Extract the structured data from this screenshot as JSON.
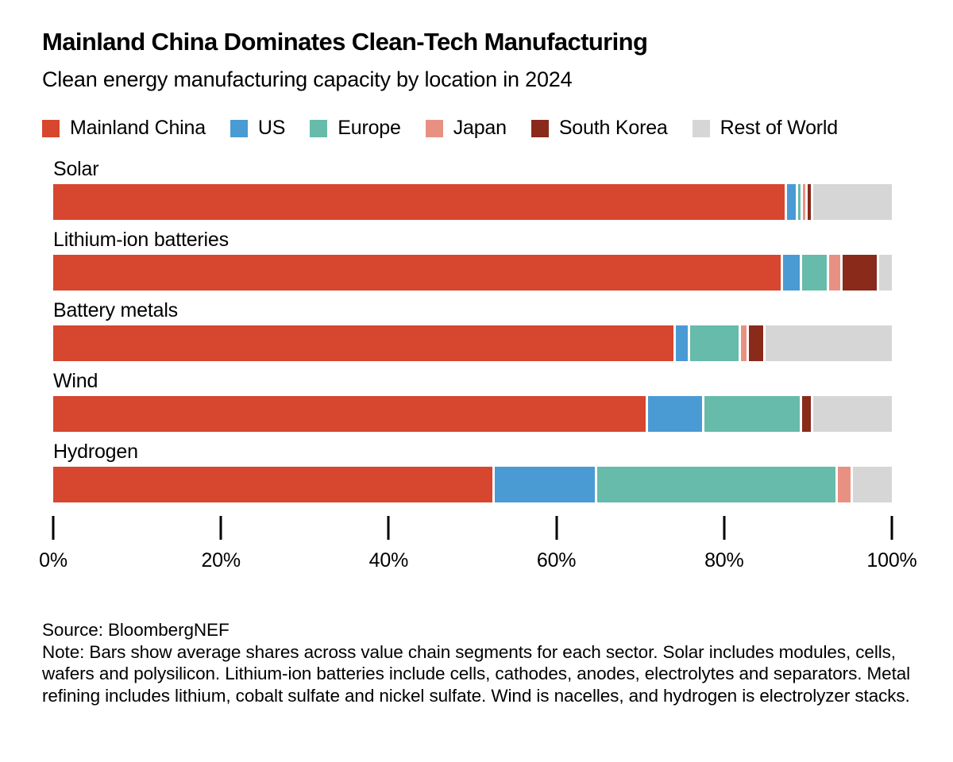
{
  "header": {
    "title": "Mainland China Dominates Clean-Tech Manufacturing",
    "subtitle": "Clean energy manufacturing capacity by location in 2024"
  },
  "chart_data": {
    "type": "bar",
    "orientation": "horizontal-stacked",
    "unit": "percent",
    "title": "Mainland China Dominates Clean-Tech Manufacturing",
    "subtitle": "Clean energy manufacturing capacity by location in 2024",
    "legend_position": "top",
    "grid": false,
    "legend": [
      {
        "name": "Mainland China",
        "color": "#d7462f"
      },
      {
        "name": "US",
        "color": "#4a9ad4"
      },
      {
        "name": "Europe",
        "color": "#66bbaa"
      },
      {
        "name": "Japan",
        "color": "#e89183"
      },
      {
        "name": "South Korea",
        "color": "#8a2a1b"
      },
      {
        "name": "Rest of World",
        "color": "#d6d6d6"
      }
    ],
    "categories": [
      "Solar",
      "Lithium-ion batteries",
      "Battery metals",
      "Wind",
      "Hydrogen"
    ],
    "rows": [
      {
        "category": "Solar",
        "values": [
          88.5,
          1.0,
          0.3,
          0.3,
          0.4,
          9.5
        ]
      },
      {
        "category": "Lithium-ion batteries",
        "values": [
          88.0,
          2.0,
          3.0,
          1.3,
          4.2,
          1.5
        ]
      },
      {
        "category": "Battery metals",
        "values": [
          75.0,
          1.5,
          5.8,
          0.7,
          1.7,
          15.3
        ]
      },
      {
        "category": "Wind",
        "values": [
          71.5,
          6.5,
          11.5,
          0.0,
          1.0,
          9.5
        ]
      },
      {
        "category": "Hydrogen",
        "values": [
          53.0,
          12.0,
          28.8,
          1.5,
          0.0,
          4.7
        ]
      }
    ],
    "x_axis": {
      "min": 0,
      "max": 100,
      "tick_labels": [
        "0%",
        "20%",
        "40%",
        "60%",
        "80%",
        "100%"
      ]
    }
  },
  "footer": {
    "source": "Source: BloombergNEF",
    "note": "Note: Bars show average shares across value chain segments for each sector. Solar includes modules, cells, wafers and polysilicon. Lithium-ion batteries include cells, cathodes, anodes, electrolytes and separators. Metal refining includes lithium, cobalt sulfate and nickel sulfate. Wind is nacelles, and hydrogen is electrolyzer stacks."
  }
}
